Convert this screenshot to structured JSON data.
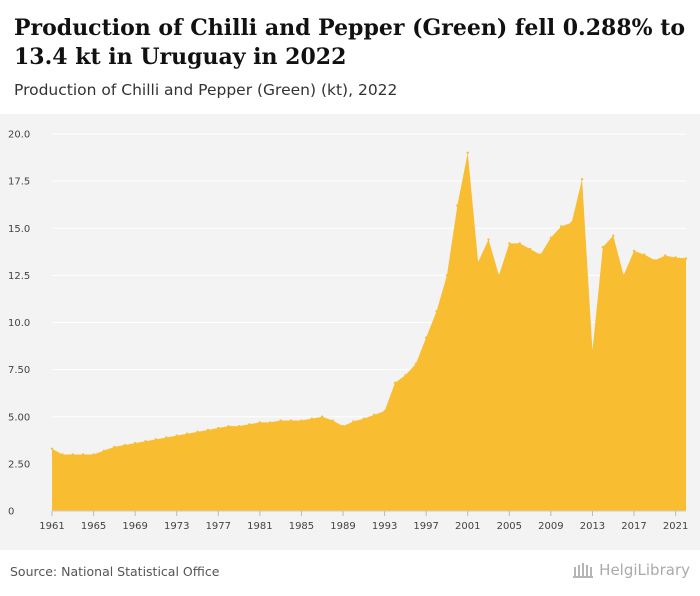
{
  "title": "Production of Chilli and Pepper (Green) fell 0.288% to 13.4 kt in Uruguay in 2022",
  "subtitle": "Production of Chilli and Pepper (Green) (kt), 2022",
  "source": "Source: National Statistical Office",
  "logo_text": "HelgiLibrary",
  "colors": {
    "area": "#f8bd30",
    "plot_background": "#f3f3f3",
    "grid": "#ffffff"
  },
  "chart_data": {
    "type": "area",
    "title": "Production of Chilli and Pepper (Green) fell 0.288% to 13.4 kt in Uruguay in 2022",
    "subtitle": "Production of Chilli and Pepper (Green) (kt), 2022",
    "xlabel": "",
    "ylabel": "",
    "xlim": [
      1961,
      2022
    ],
    "ylim": [
      0,
      20
    ],
    "grid": true,
    "legend": "none",
    "yticks": [
      "0",
      "2.50",
      "5.00",
      "7.50",
      "10.0",
      "12.5",
      "15.0",
      "17.5",
      "20.0"
    ],
    "xticks": [
      "1961",
      "1965",
      "1969",
      "1973",
      "1977",
      "1981",
      "1985",
      "1989",
      "1993",
      "1997",
      "2001",
      "2005",
      "2009",
      "2013",
      "2017",
      "2021"
    ],
    "x": [
      1961,
      1962,
      1963,
      1964,
      1965,
      1966,
      1967,
      1968,
      1969,
      1970,
      1971,
      1972,
      1973,
      1974,
      1975,
      1976,
      1977,
      1978,
      1979,
      1980,
      1981,
      1982,
      1983,
      1984,
      1985,
      1986,
      1987,
      1988,
      1989,
      1990,
      1991,
      1992,
      1993,
      1994,
      1995,
      1996,
      1997,
      1998,
      1999,
      2000,
      2001,
      2002,
      2003,
      2004,
      2005,
      2006,
      2007,
      2008,
      2009,
      2010,
      2011,
      2012,
      2013,
      2014,
      2015,
      2016,
      2017,
      2018,
      2019,
      2020,
      2021,
      2022
    ],
    "values": [
      3.3,
      3.0,
      3.0,
      3.0,
      3.0,
      3.2,
      3.4,
      3.5,
      3.6,
      3.7,
      3.8,
      3.9,
      4.0,
      4.1,
      4.2,
      4.3,
      4.4,
      4.5,
      4.5,
      4.6,
      4.7,
      4.7,
      4.8,
      4.8,
      4.8,
      4.9,
      5.0,
      4.8,
      4.5,
      4.75,
      4.9,
      5.1,
      5.3,
      6.8,
      7.2,
      7.8,
      9.2,
      10.6,
      12.5,
      16.2,
      19.0,
      13.2,
      14.4,
      12.5,
      14.2,
      14.2,
      13.9,
      13.6,
      14.5,
      15.1,
      15.3,
      17.6,
      8.5,
      14.0,
      14.6,
      12.5,
      13.8,
      13.6,
      13.3,
      13.55,
      13.45,
      13.4
    ]
  }
}
